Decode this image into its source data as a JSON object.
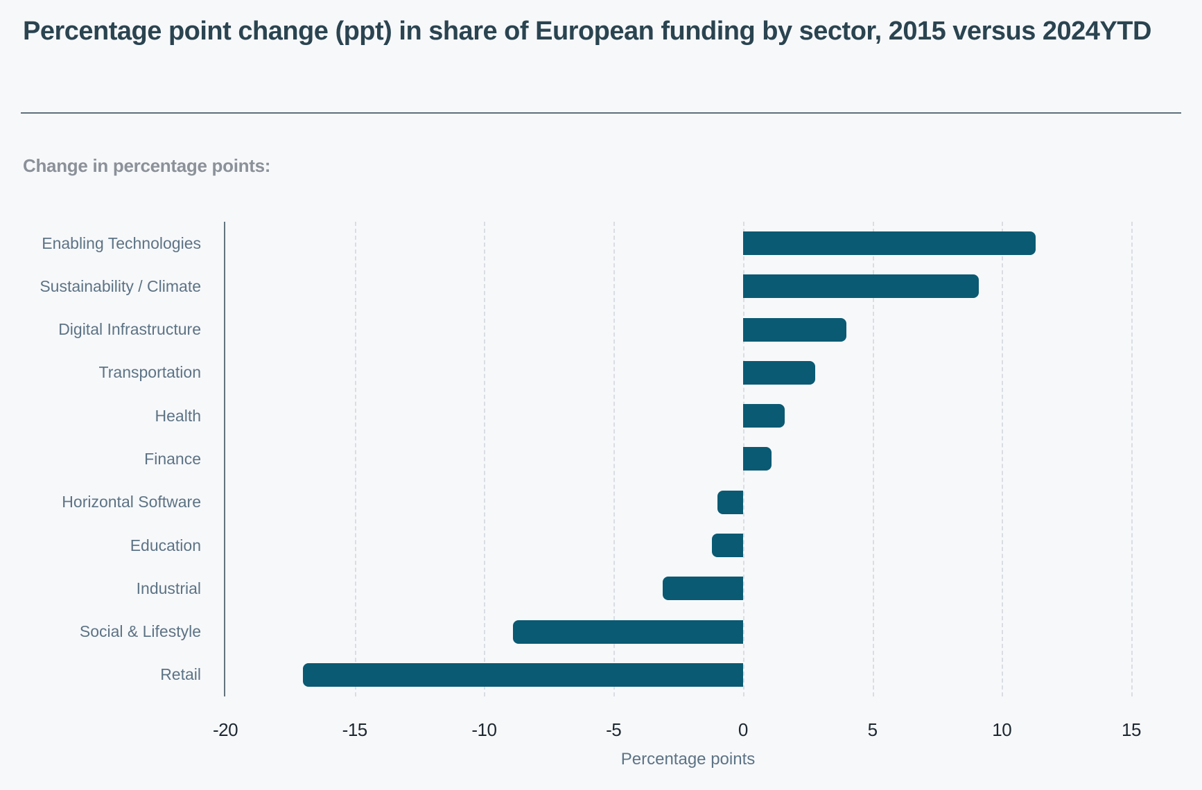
{
  "page": {
    "title": "Percentage point change (ppt) in share of European funding by sector, 2015 versus 2024YTD",
    "section_label": "Change in percentage points:"
  },
  "chart_data": {
    "type": "bar",
    "orientation": "horizontal",
    "title": "Percentage point change (ppt) in share of European funding by sector, 2015 versus 2024YTD",
    "categories": [
      "Enabling Technologies",
      "Sustainability / Climate",
      "Digital Infrastructure",
      "Transportation",
      "Health",
      "Finance",
      "Horizontal Software",
      "Education",
      "Industrial",
      "Social & Lifestyle",
      "Retail"
    ],
    "values": [
      11.3,
      9.1,
      4.0,
      2.8,
      1.6,
      1.1,
      -1.0,
      -1.2,
      -3.1,
      -8.9,
      -17.0
    ],
    "xlabel": "Percentage points",
    "x_ticks": [
      -20,
      -15,
      -10,
      -5,
      0,
      5,
      10,
      15
    ],
    "xlim": [
      -20,
      15.75
    ],
    "grid": "vertical-dashed",
    "legend": "none"
  },
  "colors": {
    "background": "#f7f8fa",
    "bar": "#0a5a73",
    "title_text": "#2a4450",
    "section_label_text": "#8b9199",
    "category_label_text": "#5c7385",
    "axis_line": "#64747e",
    "gridline": "#d9dde3",
    "tick_text": "#1c2730",
    "axis_title_text": "#5c7385",
    "divider": "#5d6f7a"
  }
}
